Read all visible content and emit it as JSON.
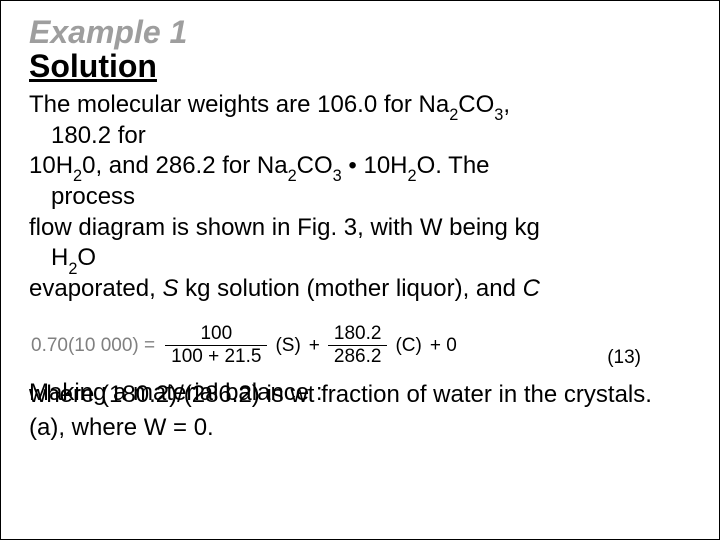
{
  "title_example": "Example 1",
  "title_solution": "Solution",
  "p1_l1": "The  molecular  weights  are  106.0  for  Na",
  "p1_l1_sub1": "2",
  "p1_l1_mid": "CO",
  "p1_l1_sub2": "3",
  "p1_l1_end": ",",
  "p1_l2": "180.2 for",
  "p2_a": "10H",
  "p2_a_sub": "2",
  "p2_b": "0,  and  286.2  for  Na",
  "p2_b_sub1": "2",
  "p2_c": "CO",
  "p2_c_sub": "3",
  "p2_dot": " • 10H",
  "p2_d_sub": "2",
  "p2_e": "O.  The",
  "p2_l2": "process",
  "p3_l1": "flow diagram is shown in Fig. 3, with W being kg",
  "p3_l2a": "H",
  "p3_l2a_sub": "2",
  "p3_l2b": "O",
  "p4_a": "evaporated, ",
  "p4_s": "S",
  "p4_b": " kg solution (mother liquor), and ",
  "p4_c": "C",
  "eq_lhs": "0.70(10 000)  =",
  "eq_f1_num": "100",
  "eq_f1_den": "100 + 21.5",
  "eq_s": "(S)",
  "eq_plus1": "+",
  "eq_f2_num": "180.2",
  "eq_f2_den": "286.2",
  "eq_c": "(C)",
  "eq_tail": " + 0",
  "eq_number": "(13)",
  "ov_a": "Making a material  balance :",
  "ov_b": "where  (180.2)/(286.2) is wt fraction of water in the crystals.",
  "last": "(a), where W = 0."
}
